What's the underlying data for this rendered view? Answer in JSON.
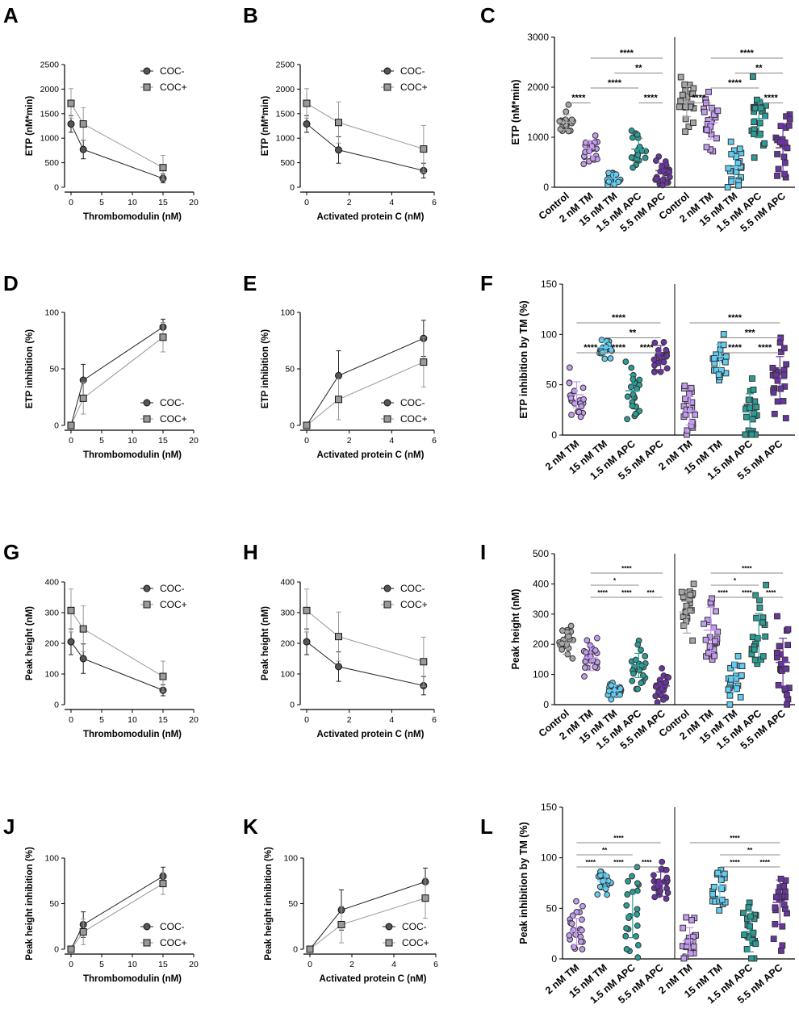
{
  "colors": {
    "coc_minus": "#555555",
    "coc_plus": "#9a9a9a",
    "control": "#a6a6a6",
    "tm2": "#c39bf0",
    "tm15": "#62cdf2",
    "apc15": "#2a9d96",
    "apc55": "#6a35a2"
  },
  "chart_data": [
    {
      "id": "A",
      "type": "line",
      "xlabel": "Thrombomodulin (nM)",
      "ylabel": "ETP (nM*min)",
      "xlim": [
        0,
        20
      ],
      "ylim": [
        0,
        2500
      ],
      "xticks": [
        0,
        5,
        10,
        15,
        20
      ],
      "yticks": [
        0,
        500,
        1000,
        1500,
        2000,
        2500
      ],
      "legend": "top-right",
      "series": [
        {
          "name": "COC-",
          "marker": "circle",
          "x": [
            0,
            2,
            15
          ],
          "y": [
            1290,
            770,
            180
          ],
          "err": [
            170,
            190,
            90
          ]
        },
        {
          "name": "COC+",
          "marker": "square",
          "x": [
            0,
            2,
            15
          ],
          "y": [
            1710,
            1290,
            400
          ],
          "err": [
            300,
            330,
            250
          ]
        }
      ]
    },
    {
      "id": "B",
      "type": "line",
      "xlabel": "Activated protein C (nM)",
      "ylabel": "ETP (nM*min)",
      "xlim": [
        0,
        6
      ],
      "ylim": [
        0,
        2500
      ],
      "xticks": [
        0,
        2,
        4,
        6
      ],
      "yticks": [
        0,
        500,
        1000,
        1500,
        2000,
        2500
      ],
      "legend": "top-right",
      "series": [
        {
          "name": "COC-",
          "marker": "circle",
          "x": [
            0,
            1.5,
            5.5
          ],
          "y": [
            1290,
            760,
            340
          ],
          "err": [
            170,
            270,
            150
          ]
        },
        {
          "name": "COC+",
          "marker": "square",
          "x": [
            0,
            1.5,
            5.5
          ],
          "y": [
            1710,
            1320,
            780
          ],
          "err": [
            300,
            420,
            480
          ]
        }
      ]
    },
    {
      "id": "C",
      "type": "scatter",
      "ylabel": "ETP (nM*min)",
      "ylim": [
        0,
        3000
      ],
      "yticks": [
        0,
        1000,
        2000,
        3000
      ],
      "categories": [
        "Control",
        "2 nM TM",
        "15 nM TM",
        "1.5 nM APC",
        "5.5 nM APC"
      ],
      "groups": [
        {
          "name": "COC-",
          "marker": "circle",
          "values": [
            1300,
            780,
            180,
            760,
            330
          ],
          "sd": [
            150,
            150,
            100,
            220,
            150
          ]
        },
        {
          "name": "COC+",
          "marker": "square",
          "values": [
            1710,
            1290,
            400,
            1370,
            790
          ],
          "sd": [
            300,
            330,
            250,
            380,
            480
          ]
        }
      ],
      "significance": [
        {
          "from": 1,
          "to": 4,
          "label": "****"
        },
        {
          "from": 2,
          "to": 4,
          "label": "**"
        },
        {
          "from": 1,
          "to": 3,
          "label": "****"
        },
        {
          "from": 0,
          "to": 1,
          "label": "****"
        },
        {
          "from": 3,
          "to": 4,
          "label": "****"
        }
      ]
    },
    {
      "id": "D",
      "type": "line",
      "xlabel": "Thrombomodulin (nM)",
      "ylabel": "ETP inhibition  (%)",
      "xlim": [
        0,
        20
      ],
      "ylim": [
        0,
        100
      ],
      "xticks": [
        0,
        5,
        10,
        15,
        20
      ],
      "yticks": [
        0,
        50,
        100
      ],
      "legend": "bottom-right",
      "series": [
        {
          "name": "COC-",
          "marker": "circle",
          "x": [
            0,
            2,
            15
          ],
          "y": [
            0,
            40,
            87
          ],
          "err": [
            0,
            14,
            7
          ]
        },
        {
          "name": "COC+",
          "marker": "square",
          "x": [
            0,
            2,
            15
          ],
          "y": [
            0,
            24,
            78
          ],
          "err": [
            0,
            14,
            13
          ]
        }
      ]
    },
    {
      "id": "E",
      "type": "line",
      "xlabel": "Activated protein C (nM)",
      "ylabel": "ETP inhibition (%)",
      "xlim": [
        0,
        6
      ],
      "ylim": [
        0,
        100
      ],
      "xticks": [
        0,
        2,
        4,
        6
      ],
      "yticks": [
        0,
        50,
        100
      ],
      "legend": "bottom-right",
      "series": [
        {
          "name": "COC-",
          "marker": "circle",
          "x": [
            0,
            1.5,
            5.5
          ],
          "y": [
            0,
            44,
            77
          ],
          "err": [
            0,
            22,
            16
          ]
        },
        {
          "name": "COC+",
          "marker": "square",
          "x": [
            0,
            1.5,
            5.5
          ],
          "y": [
            0,
            23,
            56
          ],
          "err": [
            0,
            18,
            22
          ]
        }
      ]
    },
    {
      "id": "F",
      "type": "scatter",
      "ylabel": "ETP inhibition by TM (%)",
      "ylim": [
        0,
        150
      ],
      "yticks": [
        0,
        50,
        100,
        150
      ],
      "categories": [
        "2 nM TM",
        "15 nM TM",
        "1.5 nM APC",
        "5.5 nM APC"
      ],
      "groups": [
        {
          "name": "COC-",
          "marker": "circle",
          "values": [
            40,
            87,
            44,
            77
          ],
          "sd": [
            13,
            6,
            16,
            12
          ]
        },
        {
          "name": "COC+",
          "marker": "square",
          "values": [
            24,
            78,
            23,
            56
          ],
          "sd": [
            14,
            12,
            18,
            22
          ]
        }
      ],
      "significance": [
        {
          "from": 0,
          "to": 3,
          "label": "****"
        },
        {
          "from": 1,
          "to": 3,
          "label": "**"
        },
        {
          "from": 0,
          "to": 1,
          "label": "****"
        },
        {
          "from": 1,
          "to": 2,
          "label": "****"
        },
        {
          "from": 2,
          "to": 3,
          "label": "****"
        }
      ],
      "significance_right": [
        {
          "from": 0,
          "to": 3,
          "label": "****"
        },
        {
          "from": 1,
          "to": 3,
          "label": "***"
        },
        {
          "from": 1,
          "to": 2,
          "label": "****"
        },
        {
          "from": 2,
          "to": 3,
          "label": "****"
        }
      ]
    },
    {
      "id": "G",
      "type": "line",
      "xlabel": "Thrombomodulin (nM)",
      "ylabel": "Peak height  (nM)",
      "xlim": [
        0,
        20
      ],
      "ylim": [
        0,
        400
      ],
      "xticks": [
        0,
        5,
        10,
        15,
        20
      ],
      "yticks": [
        0,
        100,
        200,
        300,
        400
      ],
      "legend": "top-right",
      "series": [
        {
          "name": "COC-",
          "marker": "circle",
          "x": [
            0,
            2,
            15
          ],
          "y": [
            205,
            150,
            47
          ],
          "err": [
            42,
            48,
            18
          ]
        },
        {
          "name": "COC+",
          "marker": "square",
          "x": [
            0,
            2,
            15
          ],
          "y": [
            307,
            247,
            92
          ],
          "err": [
            70,
            75,
            50
          ]
        }
      ]
    },
    {
      "id": "H",
      "type": "line",
      "xlabel": "Activated protein C (nM)",
      "ylabel": "Peak height (nM)",
      "xlim": [
        0,
        6
      ],
      "ylim": [
        0,
        400
      ],
      "xticks": [
        0,
        2,
        4,
        6
      ],
      "yticks": [
        0,
        100,
        200,
        300,
        400
      ],
      "legend": "top-right",
      "series": [
        {
          "name": "COC-",
          "marker": "circle",
          "x": [
            0,
            1.5,
            5.5
          ],
          "y": [
            205,
            124,
            62
          ],
          "err": [
            42,
            48,
            30
          ]
        },
        {
          "name": "COC+",
          "marker": "square",
          "x": [
            0,
            1.5,
            5.5
          ],
          "y": [
            307,
            222,
            140
          ],
          "err": [
            70,
            80,
            80
          ]
        }
      ]
    },
    {
      "id": "I",
      "type": "scatter",
      "ylabel": "Peak height (nM)",
      "ylim": [
        0,
        500
      ],
      "yticks": [
        0,
        100,
        200,
        300,
        400,
        500
      ],
      "categories": [
        "Control",
        "2 nM TM",
        "15 nM TM",
        "1.5 nM APC",
        "5.5 nM APC"
      ],
      "groups": [
        {
          "name": "COC-",
          "marker": "circle",
          "values": [
            205,
            155,
            47,
            130,
            62
          ],
          "sd": [
            38,
            42,
            18,
            40,
            28
          ]
        },
        {
          "name": "COC+",
          "marker": "square",
          "values": [
            307,
            247,
            92,
            222,
            140
          ],
          "sd": [
            70,
            75,
            50,
            80,
            80
          ]
        }
      ],
      "significance": [
        {
          "from": 1,
          "to": 4,
          "label": "****"
        },
        {
          "from": 1,
          "to": 3,
          "label": "*"
        },
        {
          "from": 1,
          "to": 2,
          "label": "****"
        },
        {
          "from": 2,
          "to": 3,
          "label": "****"
        },
        {
          "from": 3,
          "to": 4,
          "label": "***"
        }
      ],
      "significance_right": [
        {
          "from": 1,
          "to": 4,
          "label": "****"
        },
        {
          "from": 1,
          "to": 3,
          "label": "*"
        },
        {
          "from": 1,
          "to": 2,
          "label": "****"
        },
        {
          "from": 2,
          "to": 3,
          "label": "****"
        },
        {
          "from": 3,
          "to": 4,
          "label": "****"
        }
      ]
    },
    {
      "id": "J",
      "type": "line",
      "xlabel": "Thrombomodulin (nM)",
      "ylabel": "Peak height inhibition (%)",
      "xlim": [
        0,
        20
      ],
      "ylim": [
        0,
        100
      ],
      "xticks": [
        0,
        5,
        10,
        15,
        20
      ],
      "yticks": [
        0,
        50,
        100
      ],
      "legend": "bottom-right",
      "series": [
        {
          "name": "COC-",
          "marker": "circle",
          "x": [
            0,
            2,
            15
          ],
          "y": [
            0,
            27,
            80
          ],
          "err": [
            0,
            14,
            10
          ]
        },
        {
          "name": "COC+",
          "marker": "square",
          "x": [
            0,
            2,
            15
          ],
          "y": [
            0,
            19,
            72
          ],
          "err": [
            0,
            14,
            12
          ]
        }
      ]
    },
    {
      "id": "K",
      "type": "line",
      "xlabel": "Activated protein C (nM)",
      "ylabel": "Peak height inhibition (%)",
      "xlim": [
        0,
        6
      ],
      "ylim": [
        0,
        100
      ],
      "xticks": [
        0,
        2,
        4,
        6
      ],
      "yticks": [
        0,
        50,
        100
      ],
      "legend": "bottom-right",
      "series": [
        {
          "name": "COC-",
          "marker": "circle",
          "x": [
            0,
            1.5,
            5.5
          ],
          "y": [
            0,
            43,
            74
          ],
          "err": [
            0,
            22,
            15
          ]
        },
        {
          "name": "COC+",
          "marker": "square",
          "x": [
            0,
            1.5,
            5.5
          ],
          "y": [
            0,
            27,
            56
          ],
          "err": [
            0,
            20,
            22
          ]
        }
      ]
    },
    {
      "id": "L",
      "type": "scatter",
      "ylabel": "Peak inhibition by TM (%)",
      "ylim": [
        0,
        150
      ],
      "yticks": [
        0,
        50,
        100,
        150
      ],
      "categories": [
        "2 nM TM",
        "15 nM TM",
        "1.5 nM APC",
        "5.5 nM APC"
      ],
      "groups": [
        {
          "name": "COC-",
          "marker": "circle",
          "values": [
            27,
            77,
            43,
            74
          ],
          "sd": [
            13,
            7,
            22,
            12
          ]
        },
        {
          "name": "COC+",
          "marker": "square",
          "values": [
            18,
            72,
            27,
            56
          ],
          "sd": [
            13,
            12,
            20,
            22
          ]
        }
      ],
      "significance": [
        {
          "from": 0,
          "to": 3,
          "label": "****"
        },
        {
          "from": 0,
          "to": 2,
          "label": "**"
        },
        {
          "from": 0,
          "to": 1,
          "label": "****"
        },
        {
          "from": 1,
          "to": 2,
          "label": "****"
        },
        {
          "from": 2,
          "to": 3,
          "label": "****"
        }
      ],
      "significance_right": [
        {
          "from": 0,
          "to": 3,
          "label": "****"
        },
        {
          "from": 1,
          "to": 3,
          "label": "**"
        },
        {
          "from": 1,
          "to": 2,
          "label": "****"
        },
        {
          "from": 2,
          "to": 3,
          "label": "****"
        }
      ]
    }
  ]
}
